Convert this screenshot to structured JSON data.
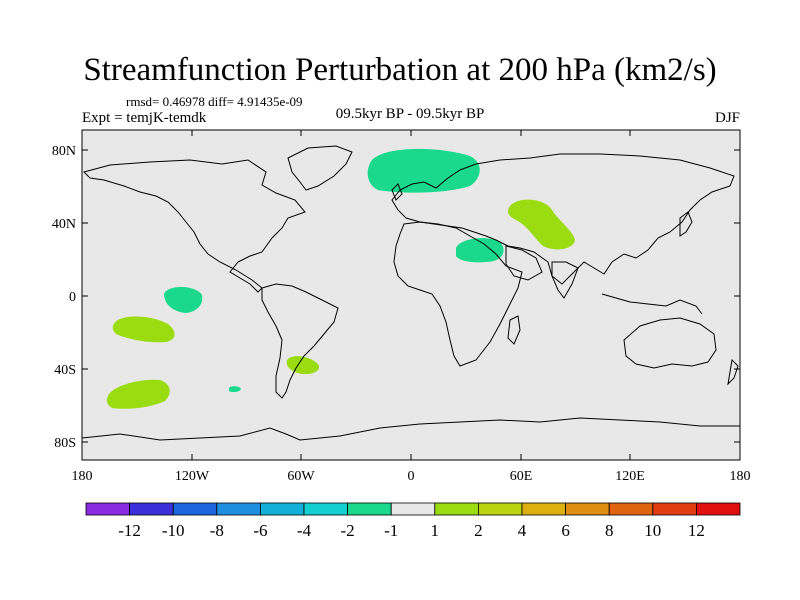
{
  "title": "Streamfunction Perturbation at 200 hPa (km2/s)",
  "stats": "rmsd= 0.46978 diff= 4.91435e-09",
  "experiment": "Expt = temjK-temdk",
  "period": "09.5kyr BP - 09.5kyr BP",
  "season": "DJF",
  "lat_ticks": [
    "80N",
    "40N",
    "0",
    "40S",
    "80S"
  ],
  "lon_ticks": [
    "180",
    "120W",
    "60W",
    "0",
    "60E",
    "120E",
    "180"
  ],
  "colorbar": {
    "colors": [
      "#8a2be2",
      "#3a2fd8",
      "#1e64dc",
      "#1e8ede",
      "#12b0d8",
      "#12cfd0",
      "#1ad98c",
      "#e8e8e8",
      "#9adc10",
      "#bcd410",
      "#dcb010",
      "#e08e10",
      "#e06410",
      "#e03c10",
      "#e01010"
    ],
    "labels": [
      "-12",
      "-10",
      "-8",
      "-6",
      "-4",
      "-2",
      "-1",
      "1",
      "2",
      "4",
      "6",
      "8",
      "10",
      "12"
    ]
  },
  "colors": {
    "ocean": "#e8e8e8",
    "negative_fill": "#1ad98c",
    "positive_fill": "#9adc10"
  }
}
